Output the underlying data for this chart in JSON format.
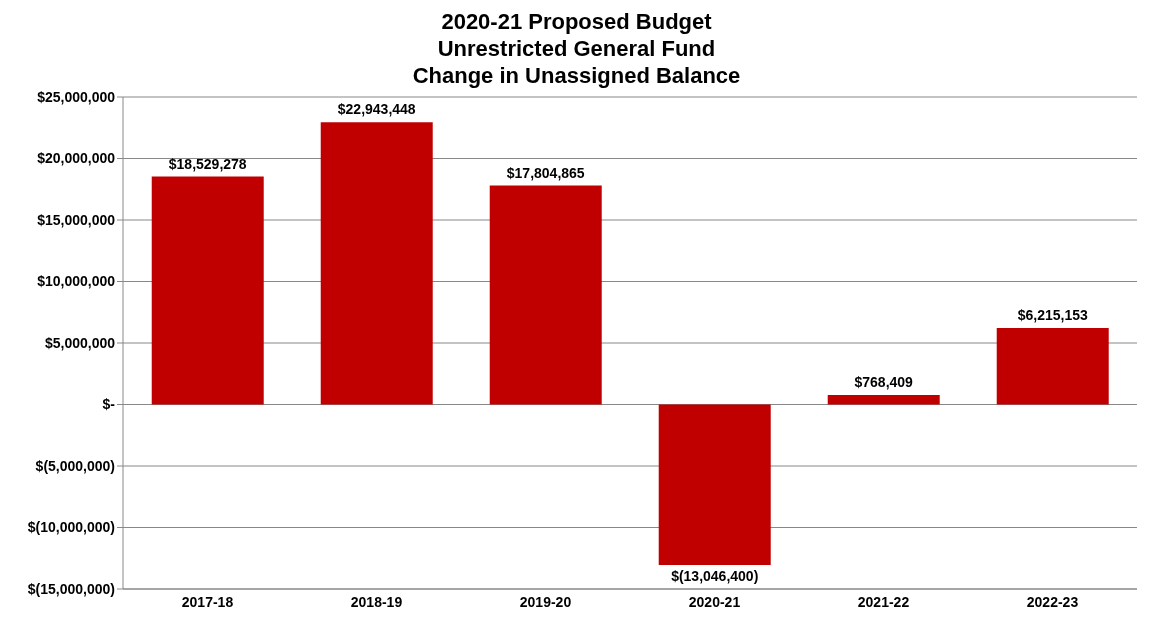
{
  "chart_data": {
    "type": "bar",
    "title": "2020-21 Proposed Budget\nUnrestricted General Fund\nChange in Unassigned Balance",
    "categories": [
      "2017-18",
      "2018-19",
      "2019-20",
      "2020-21",
      "2021-22",
      "2022-23"
    ],
    "values": [
      18529278,
      22943448,
      17804865,
      -13046400,
      768409,
      6215153
    ],
    "value_labels": [
      "$18,529,278",
      "$22,943,448",
      "$17,804,865",
      "$(13,046,400)",
      "$768,409",
      "$6,215,153"
    ],
    "color": "#c00000",
    "ylim": [
      -15000000,
      25000000
    ],
    "yticks": [
      {
        "value": -15000000,
        "label": "$(15,000,000)"
      },
      {
        "value": -10000000,
        "label": "$(10,000,000)"
      },
      {
        "value": -5000000,
        "label": "$(5,000,000)"
      },
      {
        "value": 0,
        "label": "$-"
      },
      {
        "value": 5000000,
        "label": "$5,000,000"
      },
      {
        "value": 10000000,
        "label": "$10,000,000"
      },
      {
        "value": 15000000,
        "label": "$15,000,000"
      },
      {
        "value": 20000000,
        "label": "$20,000,000"
      },
      {
        "value": 25000000,
        "label": "$25,000,000"
      }
    ],
    "grid": "y"
  }
}
